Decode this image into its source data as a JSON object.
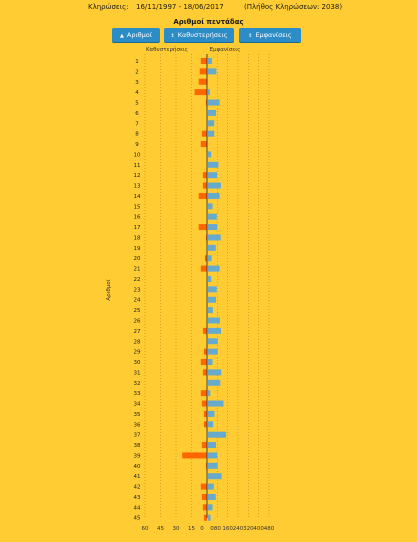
{
  "header": {
    "label": "Κληρώσεις:",
    "date_range": "16/11/1997 - 18/06/2017",
    "total_draws": "(Πλήθος Κληρώσεων: 2038)"
  },
  "title": "Αριθμοί πεντάδας",
  "buttons": [
    {
      "label": "Αριθμοί",
      "arrow": "▲"
    },
    {
      "label": "Καθυστερήσεις",
      "arrow": "⇕"
    },
    {
      "label": "Εμφανίσεις",
      "arrow": "⇕"
    }
  ],
  "colors": {
    "delays": "#FF6600",
    "appearances": "#66AACC",
    "background": "#FFCC33",
    "button": "#2C8CC6"
  },
  "chart_data": {
    "type": "bar",
    "orientation": "horizontal",
    "ylabel": "Αριθμοί",
    "categories": [
      "1",
      "2",
      "3",
      "4",
      "5",
      "6",
      "7",
      "8",
      "9",
      "10",
      "11",
      "12",
      "13",
      "14",
      "15",
      "16",
      "17",
      "18",
      "19",
      "20",
      "21",
      "22",
      "23",
      "24",
      "25",
      "26",
      "27",
      "28",
      "29",
      "30",
      "31",
      "32",
      "33",
      "34",
      "35",
      "36",
      "37",
      "38",
      "39",
      "40",
      "41",
      "42",
      "43",
      "44",
      "45"
    ],
    "left_axis": {
      "label": "Καθυστερήσεις",
      "ticks": [
        60,
        45,
        30,
        15,
        0
      ],
      "range": [
        0,
        60
      ]
    },
    "right_axis": {
      "label": "Εμφανίσεις",
      "ticks": [
        0,
        80,
        160,
        240,
        320,
        400,
        480
      ],
      "range": [
        0,
        480
      ]
    },
    "series": [
      {
        "name": "Καθυστερήσεις",
        "side": "left",
        "values": [
          6,
          7,
          8,
          12,
          1,
          0,
          0,
          5,
          6,
          0,
          0,
          4,
          4,
          8,
          0,
          0,
          8,
          1,
          0,
          2,
          6,
          0,
          0,
          0,
          0,
          0,
          4,
          0,
          3,
          6,
          4,
          0,
          6,
          5,
          3,
          3,
          0,
          5,
          24,
          1,
          0,
          6,
          5,
          4,
          3
        ]
      },
      {
        "name": "Εμφανίσεις",
        "side": "right",
        "values": [
          30,
          65,
          0,
          14,
          90,
          62,
          48,
          48,
          0,
          25,
          80,
          70,
          100,
          90,
          35,
          68,
          70,
          98,
          60,
          28,
          90,
          25,
          68,
          62,
          38,
          92,
          100,
          75,
          75,
          35,
          102,
          95,
          18,
          120,
          50,
          40,
          140,
          62,
          72,
          75,
          105,
          45,
          60,
          35,
          20
        ]
      }
    ]
  }
}
